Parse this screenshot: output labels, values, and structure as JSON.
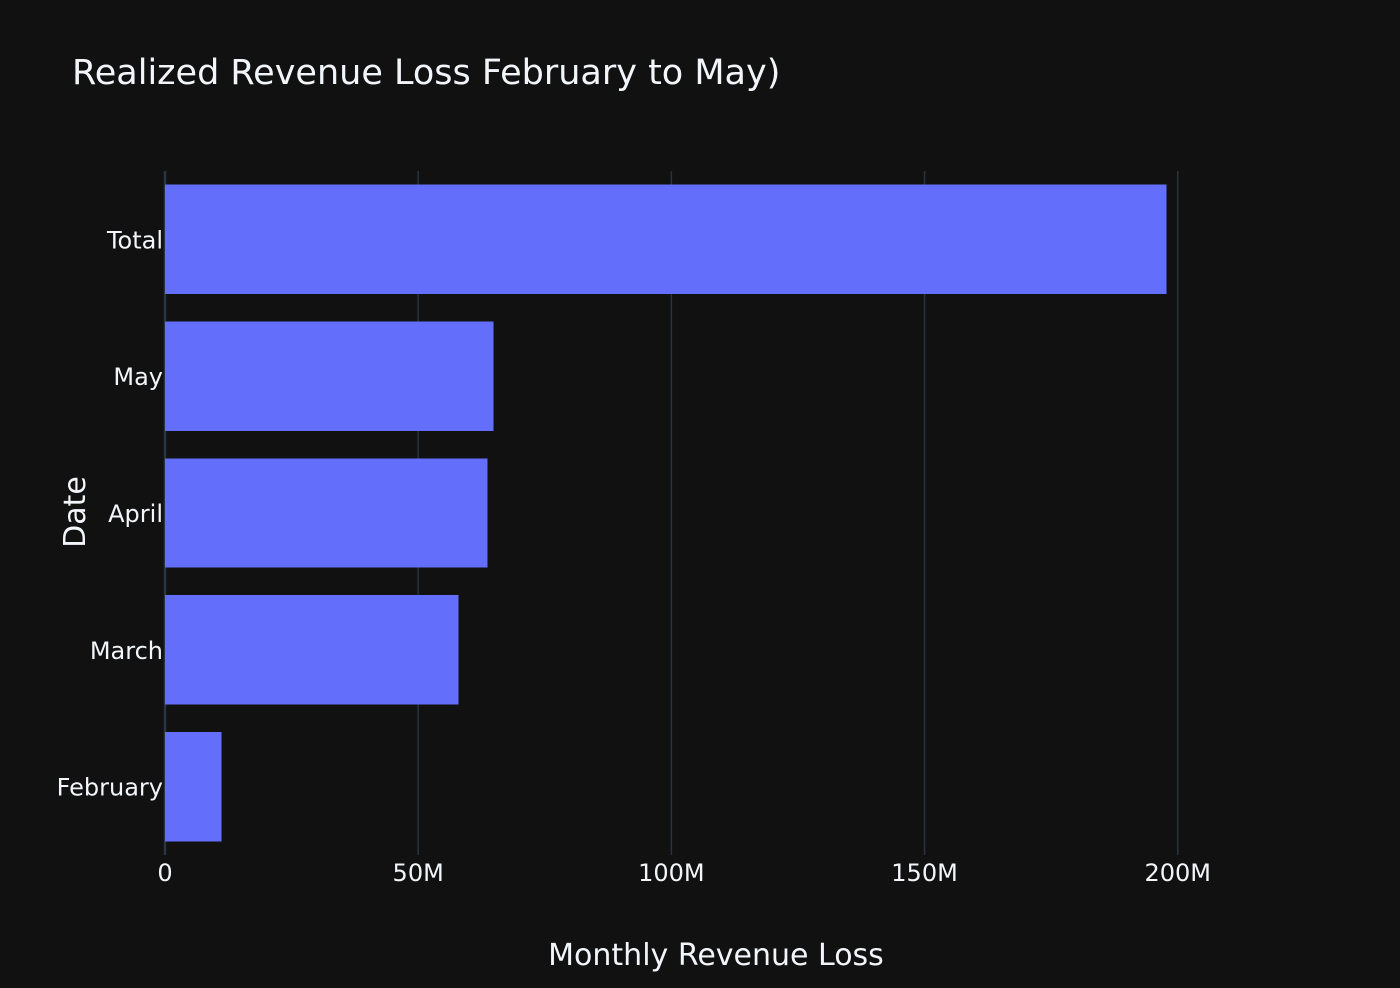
{
  "chart_data": {
    "type": "bar",
    "orientation": "horizontal",
    "title": "Realized Revenue Loss February to May)",
    "xlabel": "Monthly Revenue Loss",
    "ylabel": "Date",
    "categories": [
      "February",
      "March",
      "April",
      "May",
      "Total"
    ],
    "values": [
      11200000,
      58000000,
      63700000,
      64900000,
      197800000
    ],
    "xlim": [
      0,
      220000000
    ],
    "xticks": [
      {
        "value": 0,
        "label": "0"
      },
      {
        "value": 50000000,
        "label": "50M"
      },
      {
        "value": 100000000,
        "label": "100M"
      },
      {
        "value": 150000000,
        "label": "150M"
      },
      {
        "value": 200000000,
        "label": "200M"
      }
    ],
    "grid": "vertical",
    "legend": "none",
    "colors": {
      "background": "#111111",
      "bar": "#636efa",
      "text": "#f2f5fa",
      "grid": "#283442"
    }
  }
}
